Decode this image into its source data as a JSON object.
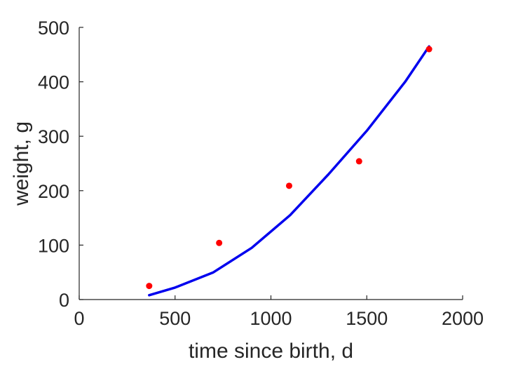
{
  "chart_data": {
    "type": "scatter",
    "xlabel": "time since birth, d",
    "ylabel": "weight, g",
    "xlim": [
      0,
      2000
    ],
    "ylim": [
      0,
      500
    ],
    "xticks": [
      0,
      500,
      1000,
      1500,
      2000
    ],
    "yticks": [
      0,
      100,
      200,
      300,
      400,
      500
    ],
    "xtick_labels": [
      "0",
      "500",
      "1000",
      "1500",
      "2000"
    ],
    "ytick_labels": [
      "0",
      "100",
      "200",
      "300",
      "400",
      "500"
    ],
    "grid": false,
    "series": [
      {
        "kind": "scatter",
        "color": "#ff0000",
        "x": [
          365,
          730,
          1095,
          1460,
          1825
        ],
        "y": [
          25,
          104,
          209,
          254,
          460
        ]
      },
      {
        "kind": "line",
        "color": "#0000ee",
        "x": [
          365,
          500,
          700,
          900,
          1100,
          1300,
          1500,
          1700,
          1825
        ],
        "y": [
          8,
          22,
          50,
          95,
          155,
          230,
          310,
          400,
          465
        ]
      }
    ]
  }
}
